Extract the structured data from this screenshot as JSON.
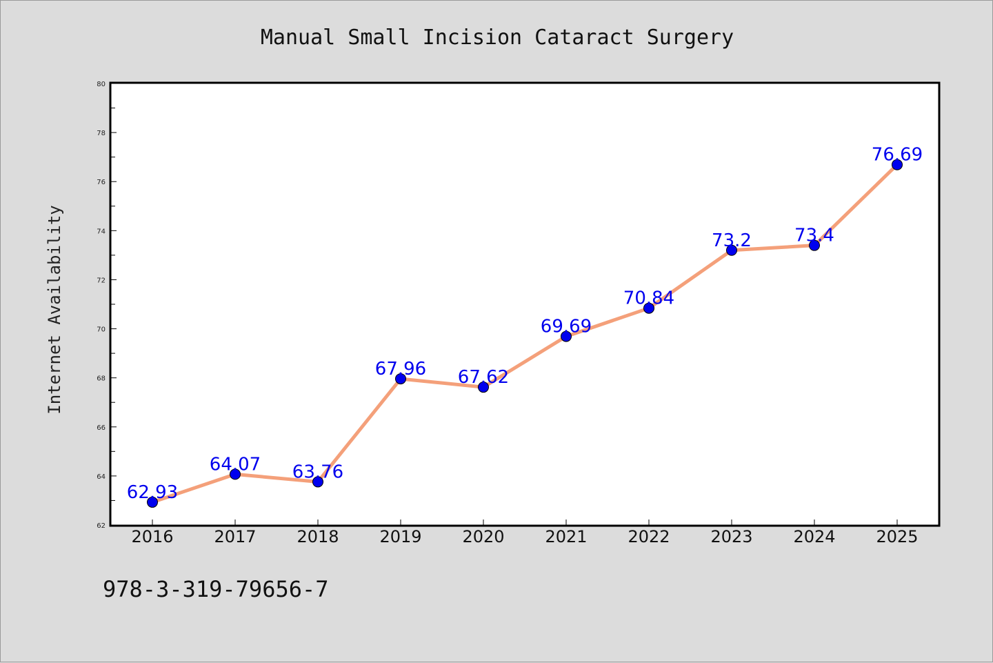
{
  "chart_data": {
    "type": "line",
    "title": "Manual Small Incision Cataract Surgery",
    "xlabel": "",
    "ylabel": "Internet Availability",
    "categories": [
      "2016",
      "2017",
      "2018",
      "2019",
      "2020",
      "2021",
      "2022",
      "2023",
      "2024",
      "2025"
    ],
    "series": [
      {
        "values": [
          62.93,
          64.07,
          63.76,
          67.96,
          67.62,
          69.69,
          70.84,
          73.2,
          73.4,
          76.69
        ],
        "labels": [
          "62.93",
          "64.07",
          "63.76",
          "67.96",
          "67.62",
          "69.69",
          "70.84",
          "73.2",
          "73.4",
          "76.69"
        ]
      }
    ],
    "ylim": [
      62,
      80
    ],
    "yticks": [
      "62",
      "64",
      "66",
      "68",
      "70",
      "72",
      "74",
      "76",
      "78",
      "80"
    ],
    "grid": false,
    "colors": {
      "line": "#f4a07a",
      "marker": "#0000ee",
      "label": "#0000ee",
      "background": "#dcdcdc",
      "plot_background": "#ffffff"
    }
  },
  "footer_text": "978-3-319-79656-7"
}
